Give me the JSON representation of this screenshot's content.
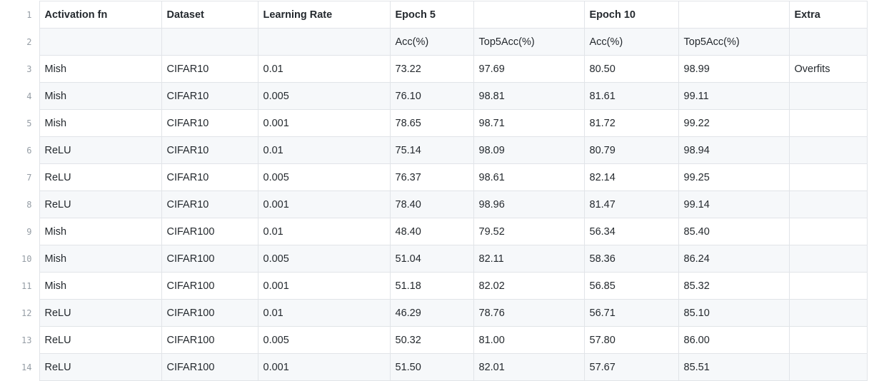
{
  "table": {
    "line_numbers": [
      "1",
      "2",
      "3",
      "4",
      "5",
      "6",
      "7",
      "8",
      "9",
      "10",
      "11",
      "12",
      "13",
      "14"
    ],
    "rows": [
      [
        "Activation fn",
        "Dataset",
        "Learning Rate",
        "Epoch 5",
        "",
        "Epoch 10",
        "",
        "Extra"
      ],
      [
        "",
        "",
        "",
        "Acc(%)",
        "Top5Acc(%)",
        "Acc(%)",
        "Top5Acc(%)",
        ""
      ],
      [
        "Mish",
        "CIFAR10",
        "0.01",
        "73.22",
        "97.69",
        "80.50",
        "98.99",
        "Overfits"
      ],
      [
        "Mish",
        "CIFAR10",
        "0.005",
        "76.10",
        "98.81",
        "81.61",
        "99.11",
        ""
      ],
      [
        "Mish",
        "CIFAR10",
        "0.001",
        "78.65",
        "98.71",
        "81.72",
        "99.22",
        ""
      ],
      [
        "ReLU",
        "CIFAR10",
        "0.01",
        "75.14",
        "98.09",
        "80.79",
        "98.94",
        ""
      ],
      [
        "ReLU",
        "CIFAR10",
        "0.005",
        "76.37",
        "98.61",
        "82.14",
        "99.25",
        ""
      ],
      [
        "ReLU",
        "CIFAR10",
        "0.001",
        "78.40",
        "98.96",
        "81.47",
        "99.14",
        ""
      ],
      [
        "Mish",
        "CIFAR100",
        "0.01",
        "48.40",
        "79.52",
        "56.34",
        "85.40",
        ""
      ],
      [
        "Mish",
        "CIFAR100",
        "0.005",
        "51.04",
        "82.11",
        "58.36",
        "86.24",
        ""
      ],
      [
        "Mish",
        "CIFAR100",
        "0.001",
        "51.18",
        "82.02",
        "56.85",
        "85.32",
        ""
      ],
      [
        "ReLU",
        "CIFAR100",
        "0.01",
        "46.29",
        "78.76",
        "56.71",
        "85.10",
        ""
      ],
      [
        "ReLU",
        "CIFAR100",
        "0.005",
        "50.32",
        "81.00",
        "57.80",
        "86.00",
        ""
      ],
      [
        "ReLU",
        "CIFAR100",
        "0.001",
        "51.50",
        "82.01",
        "57.67",
        "85.51",
        ""
      ]
    ]
  },
  "colors": {
    "border": "#e1e4e8",
    "row_alt": "#f6f8fa",
    "line_number": "#959da5",
    "text": "#24292e"
  }
}
